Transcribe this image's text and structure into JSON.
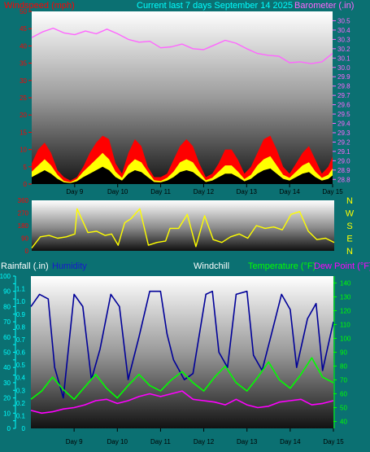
{
  "header": {
    "wind_title": "Windspeed (mph)",
    "period_title": "Current last 7 days September 14 2025",
    "baro_title": "Barometer (.in)"
  },
  "colors": {
    "background": "#0b7072",
    "wind_avg": "#ffff00",
    "wind_gust": "#ff0000",
    "barometer": "#ff66ff",
    "direction": "#ffff00",
    "humidity": "#000099",
    "temperature": "#00ff00",
    "dew_point": "#ff00ff",
    "rain_axis": "#00ffff",
    "temp_axis": "#00ff00",
    "wind_axis_label": "#ff0000",
    "header_text": "#00ffff"
  },
  "footer": {
    "rainfall_label": "Rainfall (.in)",
    "humidity_label": "Humidity",
    "windchill_label": "Windchill",
    "temperature_label": "Temperature (°F)",
    "dewpoint_label": "Dew Point (°F)"
  },
  "chart_data": [
    {
      "type": "area",
      "id": "wind",
      "title": "Windspeed (mph)",
      "categories": [
        "Day 9",
        "Day 10",
        "Day 11",
        "Day 12",
        "Day 13",
        "Day 14",
        "Day 15"
      ],
      "x_range": [
        8,
        15
      ],
      "ylim": [
        0,
        50
      ],
      "y_ticks": [
        0,
        5,
        10,
        15,
        20,
        25,
        30,
        35,
        40,
        45,
        50
      ],
      "grid": false,
      "series": [
        {
          "name": "Gust",
          "x": [
            8.0,
            8.15,
            8.3,
            8.45,
            8.6,
            8.75,
            8.9,
            9.05,
            9.2,
            9.35,
            9.5,
            9.65,
            9.8,
            9.95,
            10.1,
            10.25,
            10.4,
            10.55,
            10.7,
            10.85,
            11.0,
            11.15,
            11.3,
            11.45,
            11.6,
            11.75,
            11.9,
            12.05,
            12.2,
            12.35,
            12.5,
            12.65,
            12.8,
            12.95,
            13.1,
            13.25,
            13.4,
            13.55,
            13.7,
            13.85,
            14.0,
            14.15,
            14.3,
            14.45,
            14.6,
            14.75,
            14.9,
            15.0
          ],
          "values": [
            6,
            10,
            12,
            9,
            4,
            2,
            1,
            2,
            5,
            9,
            12,
            14,
            13,
            6,
            3,
            9,
            13,
            11,
            5,
            2,
            2,
            3,
            7,
            11,
            13,
            11,
            6,
            2,
            3,
            6,
            10,
            10,
            7,
            3,
            5,
            9,
            13,
            14,
            10,
            5,
            3,
            6,
            9,
            11,
            7,
            3,
            5,
            8
          ]
        },
        {
          "name": "Average",
          "x": [
            8.0,
            8.15,
            8.3,
            8.45,
            8.6,
            8.75,
            8.9,
            9.05,
            9.2,
            9.35,
            9.5,
            9.65,
            9.8,
            9.95,
            10.1,
            10.25,
            10.4,
            10.55,
            10.7,
            10.85,
            11.0,
            11.15,
            11.3,
            11.45,
            11.6,
            11.75,
            11.9,
            12.05,
            12.2,
            12.35,
            12.5,
            12.65,
            12.8,
            12.95,
            13.1,
            13.25,
            13.4,
            13.55,
            13.7,
            13.85,
            14.0,
            14.15,
            14.3,
            14.45,
            14.6,
            14.75,
            14.9,
            15.0
          ],
          "values": [
            2,
            3,
            4,
            3,
            1.5,
            0.5,
            0.3,
            0.8,
            2,
            3,
            4,
            5,
            4,
            2,
            1,
            3,
            4,
            3.5,
            2,
            0.6,
            0.5,
            1,
            2,
            3.5,
            4,
            3.5,
            2,
            0.6,
            1,
            2,
            3,
            3,
            2,
            0.8,
            1.5,
            3,
            4,
            4.5,
            3,
            1.5,
            1,
            2,
            3,
            3.5,
            2,
            1,
            1.5,
            2.5
          ]
        }
      ]
    },
    {
      "type": "line",
      "id": "barometer",
      "title": "Barometer (.in)",
      "x_range": [
        8,
        15
      ],
      "ylim": [
        28.75,
        30.6
      ],
      "y_ticks": [
        28.8,
        28.9,
        29.0,
        29.1,
        29.2,
        29.3,
        29.4,
        29.5,
        29.6,
        29.7,
        29.8,
        29.9,
        30.0,
        30.1,
        30.2,
        30.3,
        30.4,
        30.5
      ],
      "series": [
        {
          "name": "Barometer",
          "x": [
            8.0,
            8.25,
            8.5,
            8.75,
            9.0,
            9.25,
            9.5,
            9.75,
            10.0,
            10.25,
            10.5,
            10.75,
            11.0,
            11.25,
            11.5,
            11.75,
            12.0,
            12.25,
            12.5,
            12.75,
            13.0,
            13.25,
            13.5,
            13.75,
            14.0,
            14.25,
            14.5,
            14.75,
            15.0
          ],
          "values": [
            30.32,
            30.38,
            30.42,
            30.37,
            30.35,
            30.39,
            30.36,
            30.41,
            30.36,
            30.3,
            30.27,
            30.28,
            30.21,
            30.22,
            30.25,
            30.2,
            30.19,
            30.24,
            30.29,
            30.26,
            30.2,
            30.15,
            30.13,
            30.12,
            30.05,
            30.06,
            30.04,
            30.06,
            30.15
          ]
        }
      ]
    },
    {
      "type": "line",
      "id": "wind_direction",
      "categories": [
        "N",
        "W",
        "S",
        "E",
        "N"
      ],
      "x_range": [
        8,
        15
      ],
      "ylim": [
        0,
        360
      ],
      "y_ticks": [
        0,
        90,
        180,
        270,
        360
      ],
      "series": [
        {
          "name": "Direction",
          "x": [
            8.0,
            8.2,
            8.4,
            8.6,
            8.8,
            9.0,
            9.05,
            9.3,
            9.5,
            9.7,
            9.85,
            10.0,
            10.15,
            10.3,
            10.5,
            10.7,
            10.9,
            11.1,
            11.2,
            11.4,
            11.6,
            11.8,
            12.0,
            12.2,
            12.4,
            12.6,
            12.8,
            13.0,
            13.2,
            13.4,
            13.6,
            13.8,
            14.0,
            14.2,
            14.4,
            14.6,
            14.8,
            15.0
          ],
          "values": [
            20,
            100,
            110,
            90,
            100,
            120,
            300,
            130,
            140,
            110,
            120,
            40,
            200,
            230,
            300,
            40,
            60,
            70,
            160,
            160,
            260,
            30,
            250,
            80,
            60,
            100,
            120,
            90,
            180,
            160,
            170,
            150,
            260,
            280,
            140,
            80,
            90,
            60
          ]
        }
      ]
    },
    {
      "type": "line",
      "id": "temperature",
      "x_range": [
        8,
        15
      ],
      "categories": [
        "Day 9",
        "Day 10",
        "Day 11",
        "Day 12",
        "Day 13",
        "Day 14",
        "Day 15"
      ],
      "ylim": [
        35,
        145
      ],
      "y_ticks": [
        40,
        50,
        60,
        70,
        80,
        90,
        100,
        110,
        120,
        130,
        140
      ],
      "series": [
        {
          "name": "Temperature (°F)",
          "x": [
            8.0,
            8.25,
            8.5,
            8.75,
            9.0,
            9.25,
            9.5,
            9.75,
            10.0,
            10.25,
            10.5,
            10.75,
            11.0,
            11.25,
            11.5,
            11.75,
            12.0,
            12.25,
            12.5,
            12.75,
            13.0,
            13.25,
            13.5,
            13.75,
            14.0,
            14.25,
            14.5,
            14.75,
            15.0
          ],
          "values": [
            56,
            62,
            72,
            63,
            56,
            65,
            74,
            64,
            57,
            66,
            74,
            66,
            62,
            70,
            76,
            68,
            62,
            72,
            80,
            68,
            62,
            72,
            83,
            70,
            64,
            74,
            86,
            72,
            68
          ]
        },
        {
          "name": "Dew Point (°F)",
          "x": [
            8.0,
            8.25,
            8.5,
            8.75,
            9.0,
            9.25,
            9.5,
            9.75,
            10.0,
            10.25,
            10.5,
            10.75,
            11.0,
            11.25,
            11.5,
            11.75,
            12.0,
            12.25,
            12.5,
            12.75,
            13.0,
            13.25,
            13.5,
            13.75,
            14.0,
            14.25,
            14.5,
            14.75,
            15.0
          ],
          "values": [
            48,
            46,
            47,
            49,
            50,
            52,
            55,
            56,
            53,
            55,
            58,
            60,
            58,
            60,
            62,
            56,
            55,
            54,
            52,
            56,
            52,
            50,
            51,
            54,
            55,
            56,
            52,
            53,
            55
          ]
        }
      ]
    },
    {
      "type": "line",
      "id": "humidity",
      "title": "Humidity",
      "ylim": [
        0,
        100
      ],
      "y_ticks": [
        0,
        5,
        10,
        15,
        20,
        25,
        30,
        35,
        40,
        45,
        50,
        55,
        60,
        65,
        70,
        75,
        80,
        85,
        90,
        95,
        100
      ],
      "x_range": [
        8,
        15
      ],
      "series": [
        {
          "name": "Humidity",
          "x": [
            8.0,
            8.2,
            8.4,
            8.55,
            8.75,
            9.0,
            9.2,
            9.4,
            9.6,
            9.85,
            10.05,
            10.25,
            10.5,
            10.75,
            11.0,
            11.15,
            11.3,
            11.55,
            11.75,
            12.05,
            12.2,
            12.35,
            12.55,
            12.75,
            13.0,
            13.15,
            13.35,
            13.55,
            13.8,
            14.0,
            14.15,
            14.4,
            14.6,
            14.75,
            15.0
          ],
          "values": [
            80,
            88,
            85,
            40,
            20,
            88,
            80,
            32,
            52,
            88,
            80,
            32,
            60,
            90,
            90,
            62,
            45,
            32,
            36,
            88,
            90,
            50,
            40,
            88,
            90,
            48,
            38,
            60,
            88,
            78,
            40,
            72,
            82,
            38,
            70
          ]
        }
      ]
    },
    {
      "type": "line",
      "id": "rainfall",
      "title": "Rainfall (.in)",
      "ylim": [
        0,
        1.2
      ],
      "y_ticks": [
        0,
        0.1,
        0.2,
        0.3,
        0.4,
        0.5,
        0.6,
        0.7,
        0.8,
        0.9,
        1.0,
        1.1
      ],
      "series": []
    }
  ]
}
